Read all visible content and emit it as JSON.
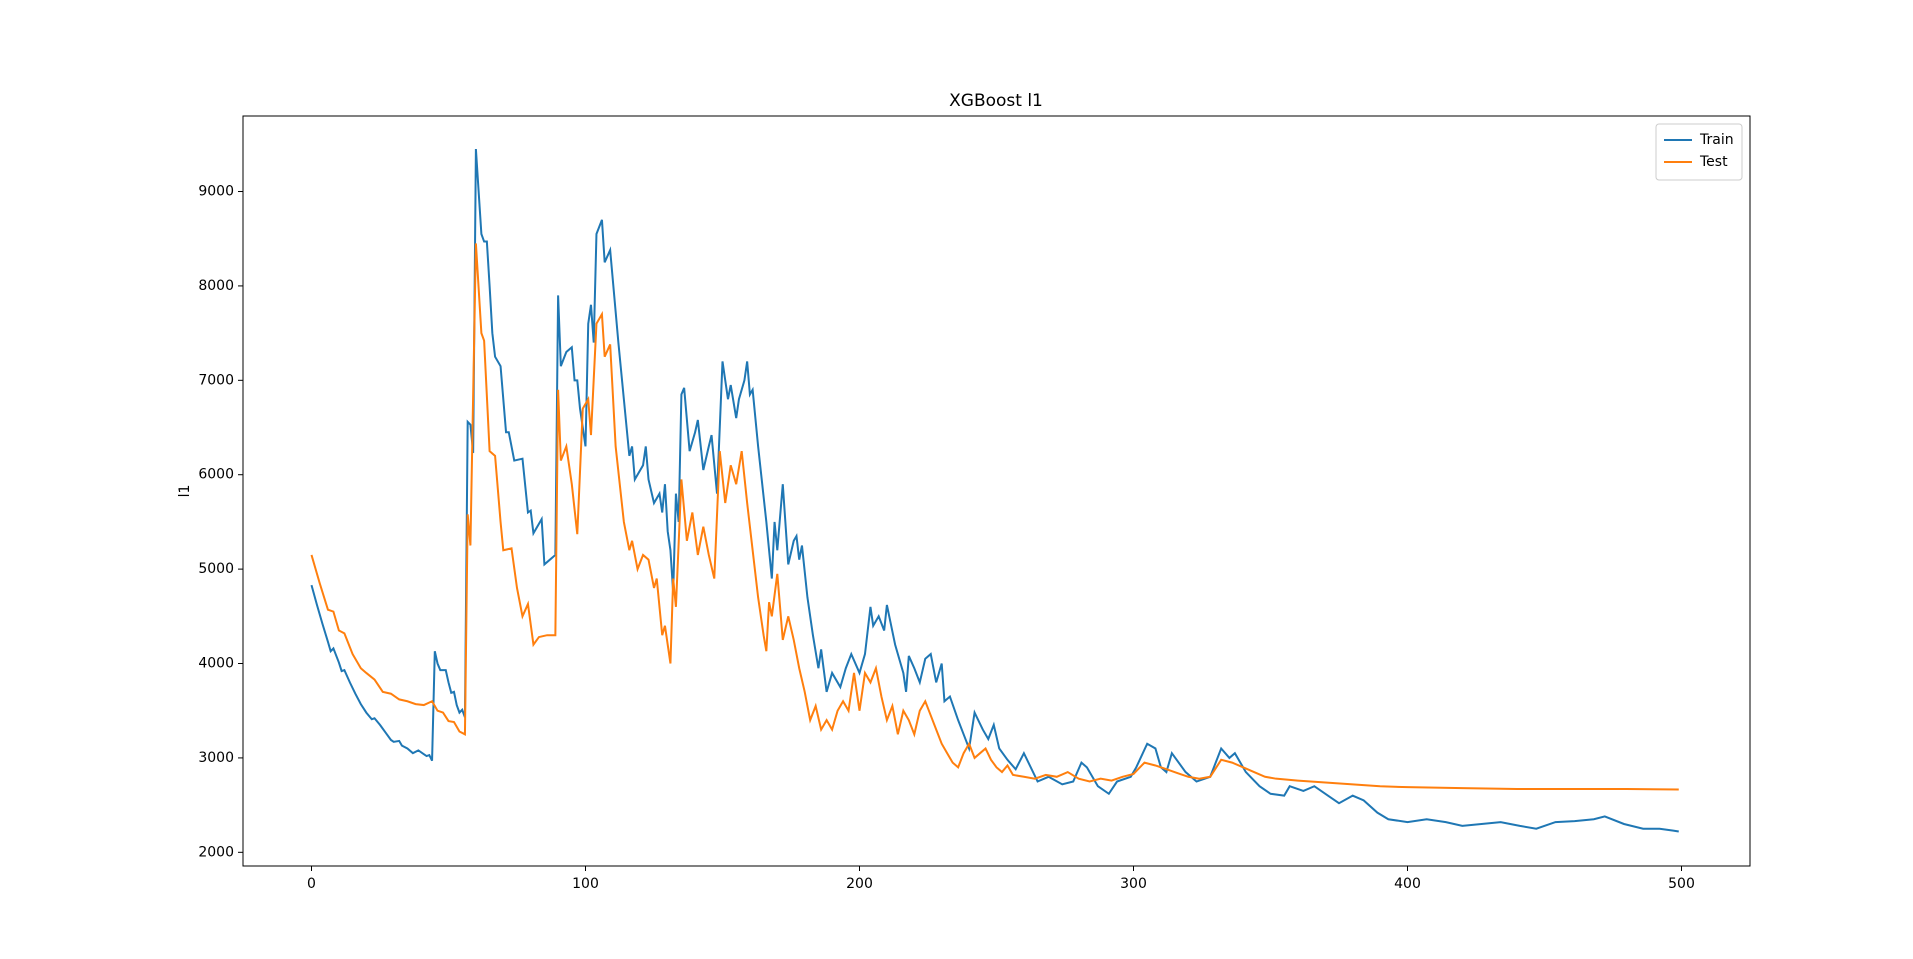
{
  "chart_data": {
    "type": "line",
    "title": "XGBoost l1",
    "y_label": "l1",
    "xlim": [
      -25,
      525
    ],
    "ylim": [
      1855,
      9800
    ],
    "xticks": [
      0,
      100,
      200,
      300,
      400,
      500
    ],
    "yticks": [
      2000,
      3000,
      4000,
      5000,
      6000,
      7000,
      8000,
      9000
    ],
    "legend": "upper right",
    "series": [
      {
        "name": "Train",
        "color": "#1f77b4",
        "x": [
          0,
          2,
          4,
          6,
          7,
          8,
          10,
          11,
          12,
          14,
          16,
          18,
          20,
          22,
          23,
          25,
          27,
          29,
          30,
          32,
          33,
          35,
          37,
          39,
          41,
          42,
          43,
          44,
          45,
          46,
          47,
          49,
          50,
          51,
          52,
          53,
          54,
          55,
          56,
          57,
          58,
          59,
          60,
          61,
          62,
          63,
          64,
          65,
          66,
          67,
          69,
          71,
          72,
          74,
          77,
          79,
          80,
          81,
          84,
          85,
          87,
          89,
          90,
          91,
          93,
          95,
          96,
          97,
          98,
          100,
          101,
          102,
          103,
          104,
          106,
          107,
          109,
          112,
          114,
          116,
          117,
          118,
          121,
          122,
          123,
          125,
          127,
          128,
          129,
          130,
          131,
          132,
          133,
          134,
          135,
          136,
          138,
          140,
          141,
          143,
          145,
          146,
          148,
          150,
          152,
          153,
          155,
          156,
          158,
          159,
          160,
          161,
          163,
          166,
          168,
          169,
          170,
          172,
          174,
          176,
          177,
          178,
          179,
          181,
          183,
          185,
          186,
          188,
          190,
          193,
          195,
          197,
          200,
          202,
          204,
          205,
          207,
          209,
          210,
          213,
          216,
          217,
          218,
          220,
          222,
          224,
          226,
          228,
          230,
          231,
          233,
          236,
          238,
          240,
          242,
          245,
          247,
          249,
          251,
          254,
          257,
          260,
          265,
          269,
          274,
          278,
          281,
          283,
          287,
          291,
          294,
          299,
          301,
          305,
          308,
          310,
          312,
          314,
          319,
          323,
          328,
          332,
          335,
          337,
          341,
          346,
          350,
          355,
          357,
          362,
          366,
          371,
          375,
          380,
          384,
          389,
          393,
          400,
          407,
          414,
          420,
          427,
          434,
          441,
          447,
          454,
          461,
          468,
          472,
          479,
          486,
          492,
          497,
          499
        ],
        "values": [
          4830,
          4620,
          4420,
          4230,
          4130,
          4160,
          4010,
          3920,
          3930,
          3800,
          3680,
          3570,
          3480,
          3410,
          3420,
          3350,
          3270,
          3190,
          3170,
          3180,
          3130,
          3100,
          3050,
          3080,
          3040,
          3020,
          3030,
          2970,
          4130,
          4000,
          3930,
          3930,
          3800,
          3690,
          3700,
          3560,
          3480,
          3510,
          3430,
          6560,
          6530,
          6230,
          9450,
          9000,
          8550,
          8470,
          8470,
          8000,
          7500,
          7250,
          7150,
          6450,
          6450,
          6150,
          6170,
          5600,
          5620,
          5380,
          5530,
          5050,
          5100,
          5150,
          7900,
          7150,
          7300,
          7350,
          7000,
          7000,
          6700,
          6300,
          7600,
          7800,
          7400,
          8550,
          8700,
          8250,
          8380,
          7400,
          6800,
          6200,
          6300,
          5950,
          6100,
          6300,
          5950,
          5700,
          5800,
          5600,
          5900,
          5400,
          5200,
          4750,
          5800,
          5500,
          6850,
          6920,
          6250,
          6450,
          6580,
          6050,
          6300,
          6420,
          5800,
          7200,
          6800,
          6950,
          6600,
          6800,
          7000,
          7200,
          6850,
          6900,
          6300,
          5500,
          4900,
          5500,
          5200,
          5900,
          5050,
          5300,
          5350,
          5100,
          5250,
          4700,
          4300,
          3950,
          4150,
          3700,
          3900,
          3750,
          3950,
          4100,
          3900,
          4100,
          4600,
          4400,
          4500,
          4350,
          4620,
          4200,
          3900,
          3700,
          4080,
          3950,
          3800,
          4050,
          4100,
          3800,
          4000,
          3600,
          3650,
          3400,
          3250,
          3100,
          3480,
          3300,
          3200,
          3350,
          3100,
          2980,
          2880,
          3050,
          2750,
          2800,
          2720,
          2750,
          2950,
          2900,
          2700,
          2620,
          2750,
          2800,
          2900,
          3150,
          3100,
          2900,
          2850,
          3050,
          2850,
          2750,
          2800,
          3100,
          3000,
          3050,
          2850,
          2700,
          2620,
          2600,
          2700,
          2650,
          2700,
          2600,
          2520,
          2600,
          2550,
          2420,
          2350,
          2320,
          2350,
          2320,
          2280,
          2300,
          2320,
          2280,
          2250,
          2320,
          2330,
          2350,
          2380,
          2300,
          2250,
          2250,
          2230,
          2220
        ]
      },
      {
        "name": "Test",
        "color": "#ff7f0e",
        "x": [
          0,
          3,
          6,
          8,
          10,
          12,
          15,
          18,
          20,
          23,
          26,
          29,
          32,
          35,
          38,
          41,
          44,
          46,
          48,
          50,
          52,
          54,
          56,
          57,
          58,
          60,
          62,
          63,
          65,
          67,
          69,
          70,
          73,
          75,
          77,
          79,
          81,
          83,
          86,
          89,
          90,
          91,
          93,
          95,
          97,
          99,
          101,
          102,
          104,
          106,
          107,
          109,
          111,
          114,
          116,
          117,
          119,
          121,
          123,
          125,
          126,
          128,
          129,
          131,
          132,
          133,
          135,
          137,
          139,
          141,
          143,
          145,
          147,
          149,
          151,
          153,
          155,
          157,
          159,
          161,
          163,
          165,
          166,
          167,
          168,
          170,
          172,
          174,
          176,
          178,
          180,
          182,
          184,
          186,
          188,
          190,
          192,
          194,
          196,
          198,
          200,
          202,
          204,
          206,
          208,
          210,
          212,
          214,
          216,
          218,
          220,
          222,
          224,
          226,
          228,
          230,
          232,
          234,
          236,
          238,
          240,
          242,
          244,
          246,
          248,
          250,
          252,
          254,
          256,
          260,
          264,
          268,
          272,
          276,
          280,
          284,
          288,
          292,
          296,
          300,
          304,
          308,
          312,
          316,
          320,
          324,
          328,
          332,
          336,
          340,
          344,
          348,
          352,
          356,
          360,
          370,
          380,
          390,
          400,
          420,
          440,
          460,
          480,
          499
        ],
        "values": [
          5150,
          4850,
          4570,
          4550,
          4350,
          4320,
          4100,
          3950,
          3900,
          3830,
          3700,
          3680,
          3620,
          3600,
          3570,
          3560,
          3600,
          3500,
          3480,
          3390,
          3380,
          3280,
          3250,
          5580,
          5250,
          8450,
          7500,
          7420,
          6250,
          6200,
          5500,
          5200,
          5220,
          4800,
          4500,
          4630,
          4200,
          4280,
          4300,
          4300,
          6900,
          6150,
          6300,
          5900,
          5370,
          6700,
          6800,
          6420,
          7600,
          7700,
          7250,
          7380,
          6300,
          5500,
          5200,
          5300,
          5000,
          5150,
          5100,
          4800,
          4900,
          4300,
          4400,
          4000,
          4900,
          4600,
          5950,
          5300,
          5600,
          5150,
          5450,
          5150,
          4900,
          6250,
          5700,
          6100,
          5900,
          6250,
          5700,
          5200,
          4700,
          4300,
          4130,
          4650,
          4500,
          4950,
          4250,
          4500,
          4250,
          3950,
          3700,
          3400,
          3550,
          3300,
          3400,
          3300,
          3500,
          3600,
          3500,
          3900,
          3500,
          3900,
          3800,
          3950,
          3650,
          3400,
          3550,
          3250,
          3500,
          3400,
          3250,
          3500,
          3600,
          3450,
          3300,
          3150,
          3050,
          2950,
          2900,
          3050,
          3150,
          3000,
          3050,
          3100,
          2980,
          2900,
          2850,
          2920,
          2820,
          2800,
          2780,
          2820,
          2800,
          2850,
          2780,
          2750,
          2780,
          2760,
          2800,
          2830,
          2950,
          2920,
          2880,
          2840,
          2800,
          2780,
          2800,
          2980,
          2950,
          2900,
          2850,
          2800,
          2780,
          2770,
          2760,
          2740,
          2720,
          2700,
          2690,
          2680,
          2670,
          2670,
          2670,
          2665
        ]
      }
    ]
  }
}
